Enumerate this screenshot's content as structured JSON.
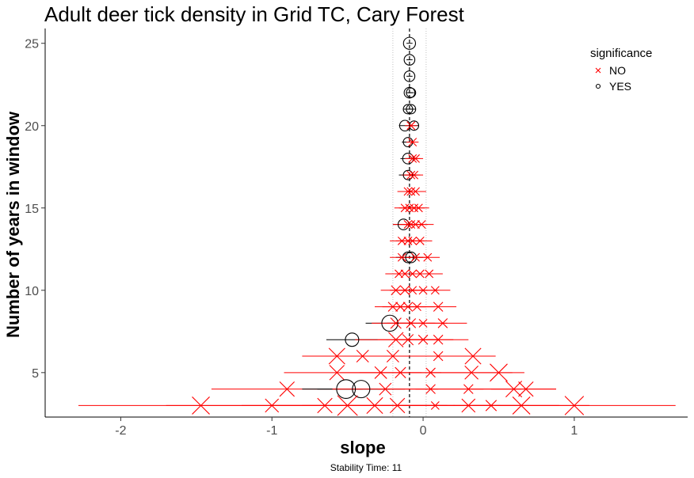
{
  "chart_data": {
    "type": "scatter",
    "title": "Adult deer tick density in Grid TC, Cary Forest",
    "xlabel": "slope",
    "ylabel": "Number of years in window",
    "caption": "Stability Time: 11",
    "xlim": [
      -2.5,
      1.75
    ],
    "ylim": [
      2.3,
      25.9
    ],
    "x_ticks": [
      -2,
      -1,
      0,
      1
    ],
    "x_tick_labels": [
      "-2",
      "-1",
      "0",
      "1"
    ],
    "y_ticks": [
      5,
      10,
      15,
      20,
      25
    ],
    "y_tick_labels": [
      "5",
      "10",
      "15",
      "20",
      "25"
    ],
    "reference_lines": {
      "dashed_x": -0.09,
      "dotted_x": [
        -0.2,
        0.02
      ]
    },
    "grid": false,
    "legend": {
      "title": "significance",
      "position": "top-right",
      "items": [
        {
          "label": "NO",
          "shape": "x",
          "color": "#ff0000"
        },
        {
          "label": "YES",
          "shape": "circle",
          "color": "#000000"
        }
      ]
    },
    "colors": {
      "no": "#ff0000",
      "yes": "#000000"
    },
    "points": [
      {
        "y": 25,
        "slope": -0.09,
        "lo": -0.11,
        "hi": -0.07,
        "sig": "YES",
        "size": 0.6
      },
      {
        "y": 24,
        "slope": -0.09,
        "lo": -0.11,
        "hi": -0.07,
        "sig": "YES",
        "size": 0.5
      },
      {
        "y": 23,
        "slope": -0.09,
        "lo": -0.11,
        "hi": -0.07,
        "sig": "YES",
        "size": 0.5
      },
      {
        "y": 22,
        "slope": -0.09,
        "lo": -0.11,
        "hi": -0.07,
        "sig": "YES",
        "size": 0.5
      },
      {
        "y": 22,
        "slope": -0.08,
        "lo": -0.1,
        "hi": -0.06,
        "sig": "YES",
        "size": 0.4
      },
      {
        "y": 21,
        "slope": -0.08,
        "lo": -0.11,
        "hi": -0.05,
        "sig": "YES",
        "size": 0.4
      },
      {
        "y": 21,
        "slope": -0.1,
        "lo": -0.13,
        "hi": -0.07,
        "sig": "YES",
        "size": 0.4
      },
      {
        "y": 20,
        "slope": -0.12,
        "lo": -0.16,
        "hi": -0.08,
        "sig": "YES",
        "size": 0.5
      },
      {
        "y": 20,
        "slope": -0.06,
        "lo": -0.09,
        "hi": -0.03,
        "sig": "YES",
        "size": 0.4
      },
      {
        "y": 20,
        "slope": -0.08,
        "lo": -0.12,
        "hi": -0.04,
        "sig": "NO",
        "size": 0.3
      },
      {
        "y": 19,
        "slope": -0.1,
        "lo": -0.14,
        "hi": -0.06,
        "sig": "YES",
        "size": 0.4
      },
      {
        "y": 19,
        "slope": -0.07,
        "lo": -0.11,
        "hi": -0.03,
        "sig": "NO",
        "size": 0.3
      },
      {
        "y": 18,
        "slope": -0.1,
        "lo": -0.15,
        "hi": -0.05,
        "sig": "YES",
        "size": 0.5
      },
      {
        "y": 18,
        "slope": -0.07,
        "lo": -0.12,
        "hi": -0.02,
        "sig": "NO",
        "size": 0.3
      },
      {
        "y": 18,
        "slope": -0.05,
        "lo": -0.1,
        "hi": 0.0,
        "sig": "NO",
        "size": 0.3
      },
      {
        "y": 17,
        "slope": -0.1,
        "lo": -0.16,
        "hi": -0.04,
        "sig": "YES",
        "size": 0.4
      },
      {
        "y": 17,
        "slope": -0.08,
        "lo": -0.14,
        "hi": -0.02,
        "sig": "NO",
        "size": 0.3
      },
      {
        "y": 17,
        "slope": -0.06,
        "lo": -0.12,
        "hi": 0.0,
        "sig": "NO",
        "size": 0.3
      },
      {
        "y": 16,
        "slope": -0.1,
        "lo": -0.17,
        "hi": -0.03,
        "sig": "NO",
        "size": 0.3
      },
      {
        "y": 16,
        "slope": -0.08,
        "lo": -0.15,
        "hi": -0.01,
        "sig": "NO",
        "size": 0.3
      },
      {
        "y": 16,
        "slope": -0.05,
        "lo": -0.12,
        "hi": 0.02,
        "sig": "NO",
        "size": 0.3
      },
      {
        "y": 15,
        "slope": -0.12,
        "lo": -0.19,
        "hi": -0.05,
        "sig": "NO",
        "size": 0.3
      },
      {
        "y": 15,
        "slope": -0.09,
        "lo": -0.16,
        "hi": -0.02,
        "sig": "NO",
        "size": 0.3
      },
      {
        "y": 15,
        "slope": -0.06,
        "lo": -0.13,
        "hi": 0.01,
        "sig": "NO",
        "size": 0.3
      },
      {
        "y": 15,
        "slope": -0.03,
        "lo": -0.1,
        "hi": 0.04,
        "sig": "NO",
        "size": 0.3
      },
      {
        "y": 14,
        "slope": -0.13,
        "lo": -0.2,
        "hi": -0.06,
        "sig": "YES",
        "size": 0.5
      },
      {
        "y": 14,
        "slope": -0.1,
        "lo": -0.2,
        "hi": 0.0,
        "sig": "NO",
        "size": 0.3
      },
      {
        "y": 14,
        "slope": -0.08,
        "lo": -0.16,
        "hi": 0.0,
        "sig": "NO",
        "size": 0.3
      },
      {
        "y": 14,
        "slope": -0.05,
        "lo": -0.13,
        "hi": 0.03,
        "sig": "NO",
        "size": 0.3
      },
      {
        "y": 14,
        "slope": -0.01,
        "lo": -0.09,
        "hi": 0.07,
        "sig": "NO",
        "size": 0.3
      },
      {
        "y": 13,
        "slope": -0.14,
        "lo": -0.22,
        "hi": -0.06,
        "sig": "NO",
        "size": 0.3
      },
      {
        "y": 13,
        "slope": -0.1,
        "lo": -0.18,
        "hi": -0.02,
        "sig": "NO",
        "size": 0.3
      },
      {
        "y": 13,
        "slope": -0.07,
        "lo": -0.15,
        "hi": 0.01,
        "sig": "NO",
        "size": 0.3
      },
      {
        "y": 13,
        "slope": -0.02,
        "lo": -0.1,
        "hi": 0.06,
        "sig": "NO",
        "size": 0.3
      },
      {
        "y": 12,
        "slope": -0.1,
        "lo": -0.18,
        "hi": -0.02,
        "sig": "YES",
        "size": 0.5
      },
      {
        "y": 12,
        "slope": -0.08,
        "lo": -0.16,
        "hi": 0.0,
        "sig": "YES",
        "size": 0.5
      },
      {
        "y": 12,
        "slope": -0.14,
        "lo": -0.22,
        "hi": -0.06,
        "sig": "NO",
        "size": 0.3
      },
      {
        "y": 12,
        "slope": -0.05,
        "lo": -0.13,
        "hi": 0.03,
        "sig": "NO",
        "size": 0.3
      },
      {
        "y": 12,
        "slope": 0.03,
        "lo": -0.05,
        "hi": 0.11,
        "sig": "NO",
        "size": 0.3
      },
      {
        "y": 11,
        "slope": -0.16,
        "lo": -0.25,
        "hi": -0.07,
        "sig": "NO",
        "size": 0.3
      },
      {
        "y": 11,
        "slope": -0.12,
        "lo": -0.21,
        "hi": -0.03,
        "sig": "NO",
        "size": 0.3
      },
      {
        "y": 11,
        "slope": -0.07,
        "lo": -0.16,
        "hi": 0.02,
        "sig": "NO",
        "size": 0.3
      },
      {
        "y": 11,
        "slope": -0.02,
        "lo": -0.11,
        "hi": 0.07,
        "sig": "NO",
        "size": 0.3
      },
      {
        "y": 11,
        "slope": 0.04,
        "lo": -0.05,
        "hi": 0.13,
        "sig": "NO",
        "size": 0.3
      },
      {
        "y": 10,
        "slope": -0.18,
        "lo": -0.28,
        "hi": -0.08,
        "sig": "NO",
        "size": 0.4
      },
      {
        "y": 10,
        "slope": -0.12,
        "lo": -0.22,
        "hi": -0.02,
        "sig": "NO",
        "size": 0.4
      },
      {
        "y": 10,
        "slope": -0.07,
        "lo": -0.17,
        "hi": 0.03,
        "sig": "NO",
        "size": 0.3
      },
      {
        "y": 10,
        "slope": 0.0,
        "lo": -0.1,
        "hi": 0.1,
        "sig": "NO",
        "size": 0.3
      },
      {
        "y": 10,
        "slope": 0.08,
        "lo": -0.02,
        "hi": 0.18,
        "sig": "NO",
        "size": 0.3
      },
      {
        "y": 9,
        "slope": -0.2,
        "lo": -0.32,
        "hi": -0.08,
        "sig": "NO",
        "size": 0.4
      },
      {
        "y": 9,
        "slope": -0.15,
        "lo": -0.27,
        "hi": -0.03,
        "sig": "NO",
        "size": 0.4
      },
      {
        "y": 9,
        "slope": -0.1,
        "lo": -0.22,
        "hi": 0.02,
        "sig": "NO",
        "size": 0.4
      },
      {
        "y": 9,
        "slope": -0.04,
        "lo": -0.16,
        "hi": 0.08,
        "sig": "NO",
        "size": 0.3
      },
      {
        "y": 9,
        "slope": 0.1,
        "lo": -0.02,
        "hi": 0.22,
        "sig": "NO",
        "size": 0.4
      },
      {
        "y": 8,
        "slope": -0.22,
        "lo": -0.38,
        "hi": -0.06,
        "sig": "YES",
        "size": 0.9
      },
      {
        "y": 8,
        "slope": -0.18,
        "lo": -0.34,
        "hi": -0.02,
        "sig": "NO",
        "size": 0.5
      },
      {
        "y": 8,
        "slope": -0.08,
        "lo": -0.24,
        "hi": 0.08,
        "sig": "NO",
        "size": 0.4
      },
      {
        "y": 8,
        "slope": 0.0,
        "lo": -0.16,
        "hi": 0.16,
        "sig": "NO",
        "size": 0.3
      },
      {
        "y": 8,
        "slope": 0.13,
        "lo": -0.03,
        "hi": 0.29,
        "sig": "NO",
        "size": 0.4
      },
      {
        "y": 7,
        "slope": -0.47,
        "lo": -0.64,
        "hi": -0.3,
        "sig": "YES",
        "size": 0.7
      },
      {
        "y": 7,
        "slope": -0.18,
        "lo": -0.45,
        "hi": 0.09,
        "sig": "NO",
        "size": 0.8
      },
      {
        "y": 7,
        "slope": -0.1,
        "lo": -0.3,
        "hi": 0.1,
        "sig": "NO",
        "size": 0.5
      },
      {
        "y": 7,
        "slope": 0.0,
        "lo": -0.2,
        "hi": 0.2,
        "sig": "NO",
        "size": 0.4
      },
      {
        "y": 7,
        "slope": 0.1,
        "lo": -0.1,
        "hi": 0.3,
        "sig": "NO",
        "size": 0.4
      },
      {
        "y": 6,
        "slope": -0.57,
        "lo": -0.8,
        "hi": -0.34,
        "sig": "NO",
        "size": 0.9
      },
      {
        "y": 6,
        "slope": -0.4,
        "lo": -0.6,
        "hi": -0.2,
        "sig": "NO",
        "size": 0.6
      },
      {
        "y": 6,
        "slope": -0.2,
        "lo": -0.45,
        "hi": 0.05,
        "sig": "NO",
        "size": 0.6
      },
      {
        "y": 6,
        "slope": 0.1,
        "lo": -0.15,
        "hi": 0.35,
        "sig": "NO",
        "size": 0.4
      },
      {
        "y": 6,
        "slope": 0.33,
        "lo": 0.15,
        "hi": 0.48,
        "sig": "NO",
        "size": 0.9
      },
      {
        "y": 5,
        "slope": -0.57,
        "lo": -0.92,
        "hi": -0.22,
        "sig": "NO",
        "size": 0.8
      },
      {
        "y": 5,
        "slope": -0.28,
        "lo": -0.55,
        "hi": -0.01,
        "sig": "NO",
        "size": 0.6
      },
      {
        "y": 5,
        "slope": -0.15,
        "lo": -0.42,
        "hi": 0.12,
        "sig": "NO",
        "size": 0.5
      },
      {
        "y": 5,
        "slope": 0.05,
        "lo": -0.22,
        "hi": 0.32,
        "sig": "NO",
        "size": 0.4
      },
      {
        "y": 5,
        "slope": 0.32,
        "lo": 0.05,
        "hi": 0.59,
        "sig": "NO",
        "size": 0.7
      },
      {
        "y": 5,
        "slope": 0.5,
        "lo": 0.33,
        "hi": 0.67,
        "sig": "NO",
        "size": 1.0
      },
      {
        "y": 4,
        "slope": -0.9,
        "lo": -1.4,
        "hi": -0.4,
        "sig": "NO",
        "size": 0.8
      },
      {
        "y": 4,
        "slope": -0.51,
        "lo": -0.8,
        "hi": -0.22,
        "sig": "YES",
        "size": 1.1
      },
      {
        "y": 4,
        "slope": -0.41,
        "lo": -0.7,
        "hi": -0.12,
        "sig": "YES",
        "size": 1.0
      },
      {
        "y": 4,
        "slope": -0.25,
        "lo": -0.6,
        "hi": 0.1,
        "sig": "NO",
        "size": 0.6
      },
      {
        "y": 4,
        "slope": 0.05,
        "lo": -0.3,
        "hi": 0.4,
        "sig": "NO",
        "size": 0.4
      },
      {
        "y": 4,
        "slope": 0.3,
        "lo": -0.05,
        "hi": 0.65,
        "sig": "NO",
        "size": 0.4
      },
      {
        "y": 4,
        "slope": 0.6,
        "lo": 0.32,
        "hi": 0.88,
        "sig": "NO",
        "size": 0.9
      },
      {
        "y": 4,
        "slope": 0.68,
        "lo": 0.45,
        "hi": 0.88,
        "sig": "NO",
        "size": 0.8
      },
      {
        "y": 3,
        "slope": -1.47,
        "lo": -2.28,
        "hi": -0.66,
        "sig": "NO",
        "size": 1.0
      },
      {
        "y": 3,
        "slope": -1.0,
        "lo": -1.7,
        "hi": -0.3,
        "sig": "NO",
        "size": 0.7
      },
      {
        "y": 3,
        "slope": -0.65,
        "lo": -1.2,
        "hi": -0.1,
        "sig": "NO",
        "size": 0.8
      },
      {
        "y": 3,
        "slope": -0.5,
        "lo": -1.0,
        "hi": 0.0,
        "sig": "NO",
        "size": 1.2
      },
      {
        "y": 3,
        "slope": -0.32,
        "lo": -0.8,
        "hi": 0.16,
        "sig": "NO",
        "size": 0.9
      },
      {
        "y": 3,
        "slope": -0.17,
        "lo": -0.55,
        "hi": 0.21,
        "sig": "NO",
        "size": 0.8
      },
      {
        "y": 3,
        "slope": 0.08,
        "lo": -0.35,
        "hi": 0.51,
        "sig": "NO",
        "size": 0.3
      },
      {
        "y": 3,
        "slope": 0.3,
        "lo": -0.1,
        "hi": 0.7,
        "sig": "NO",
        "size": 0.7
      },
      {
        "y": 3,
        "slope": 0.45,
        "lo": 0.0,
        "hi": 0.9,
        "sig": "NO",
        "size": 0.5
      },
      {
        "y": 3,
        "slope": 0.65,
        "lo": 0.2,
        "hi": 1.1,
        "sig": "NO",
        "size": 1.0
      },
      {
        "y": 3,
        "slope": 1.0,
        "lo": 0.33,
        "hi": 1.67,
        "sig": "NO",
        "size": 1.1
      }
    ]
  }
}
